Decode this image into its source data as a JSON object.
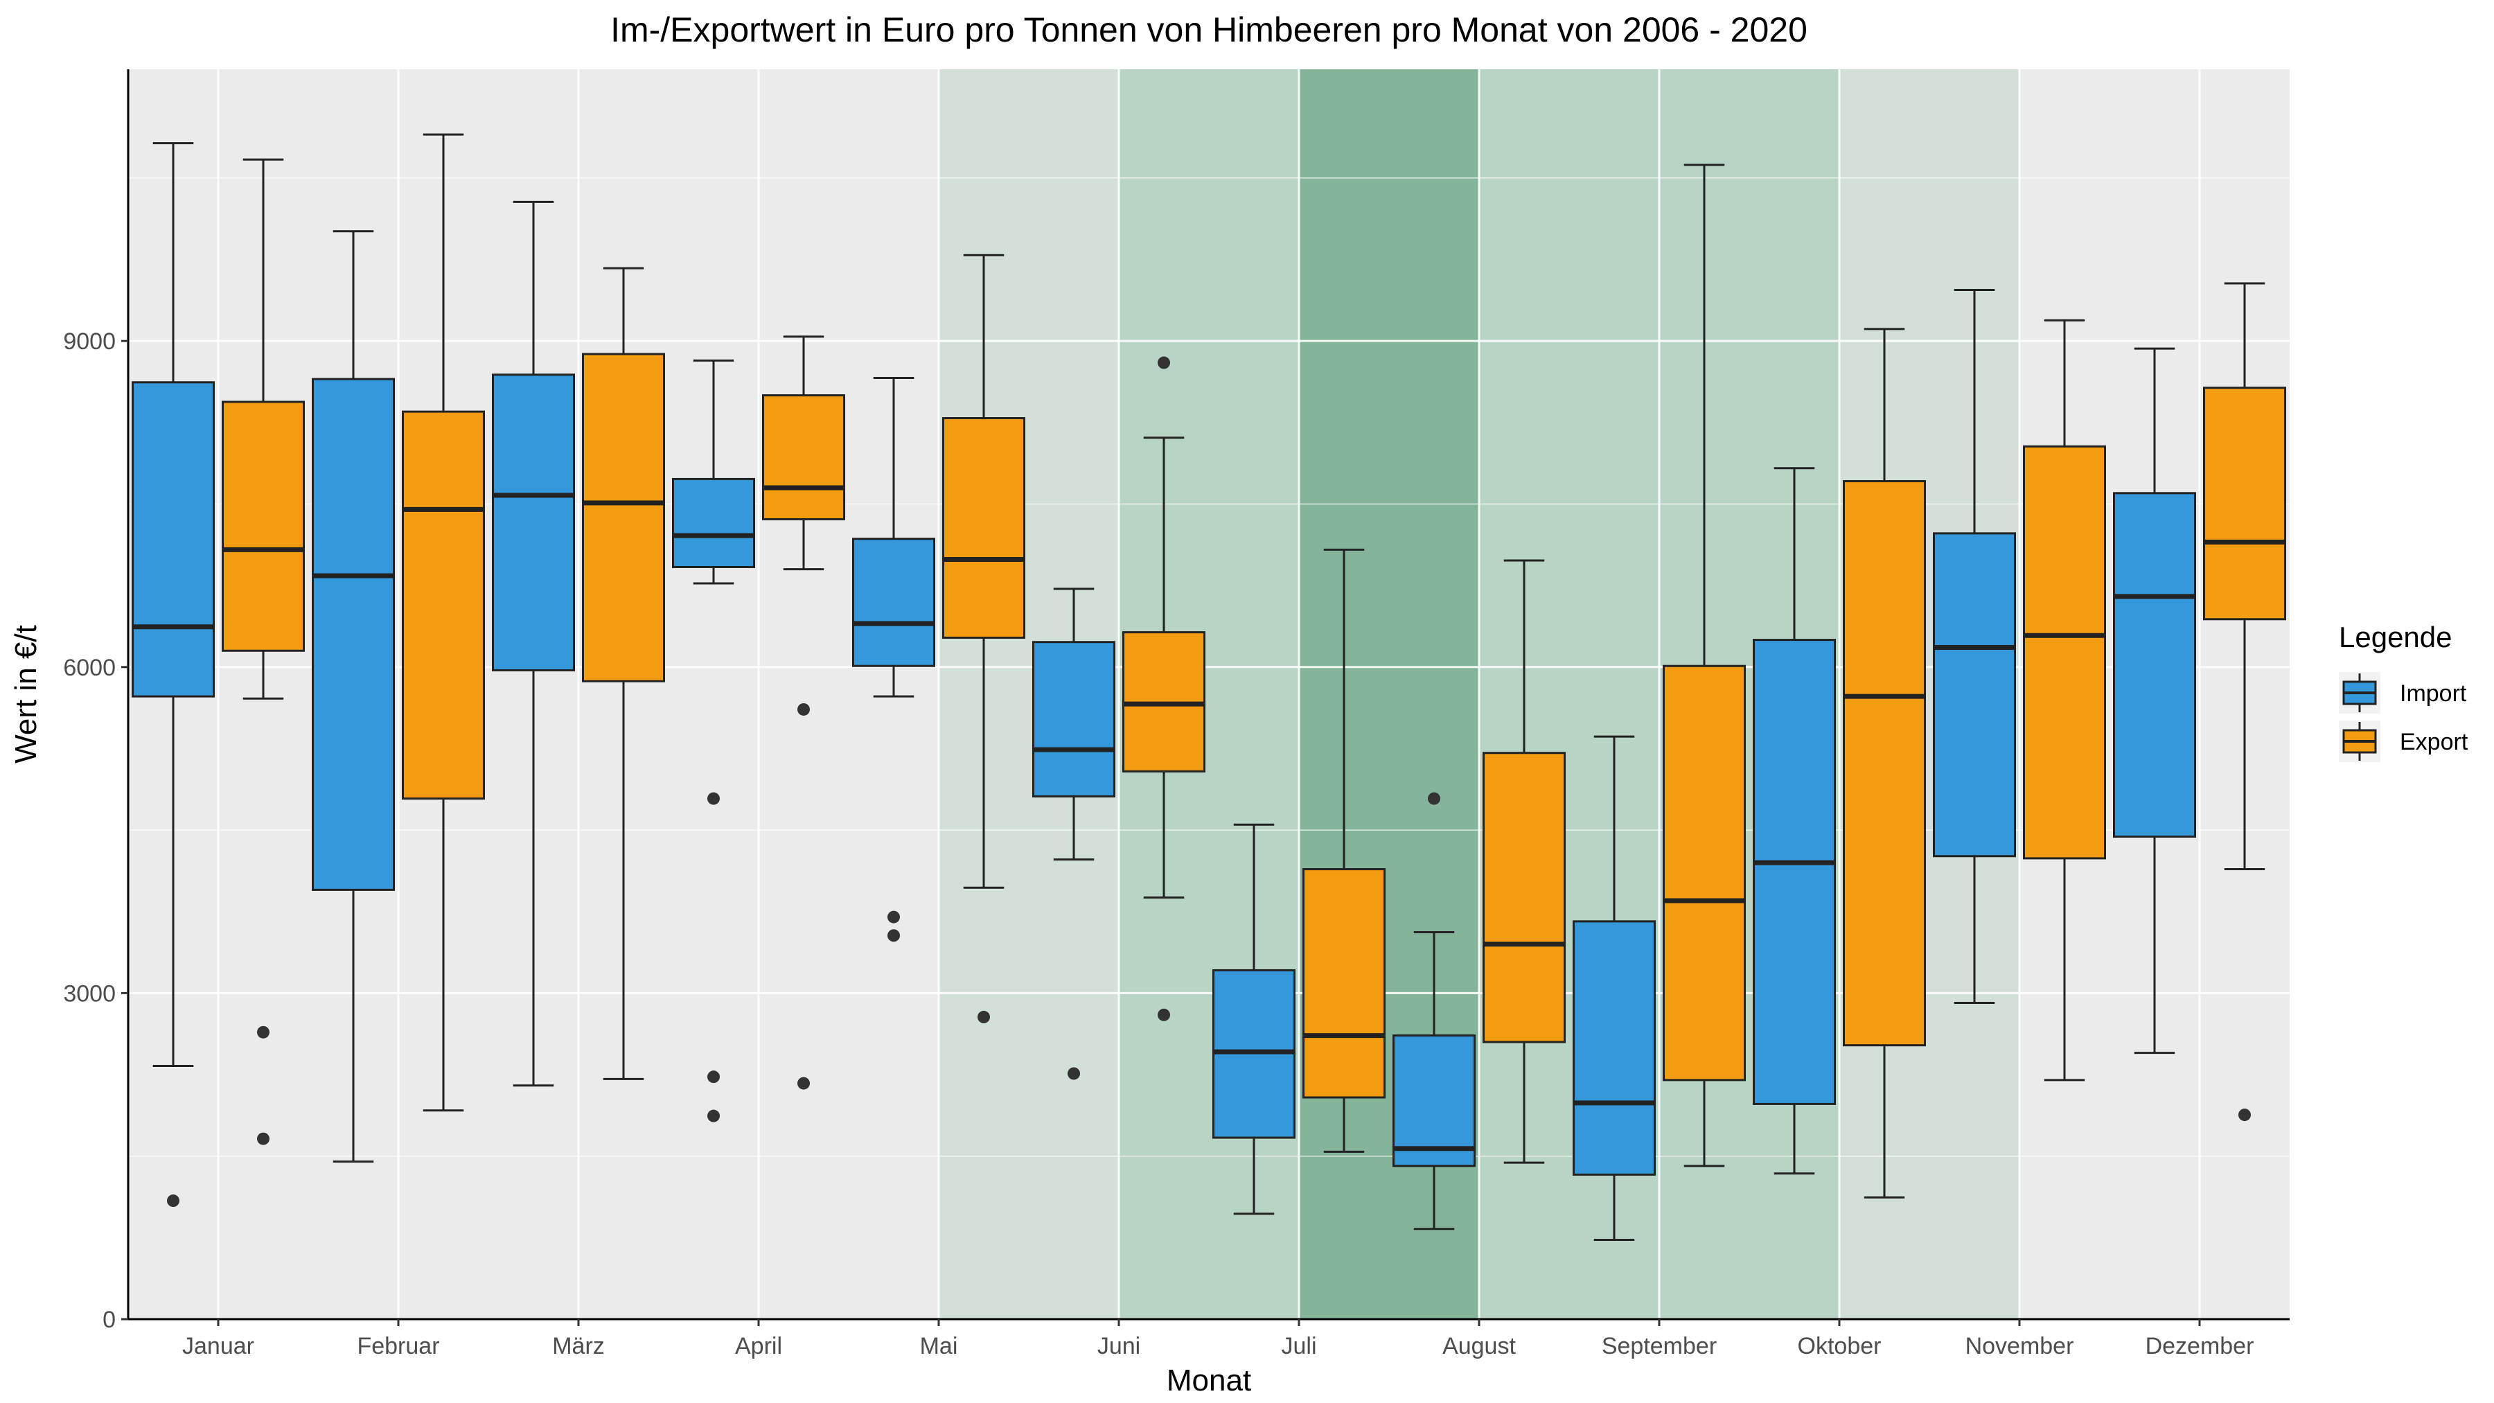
{
  "chart_data": {
    "type": "boxplot",
    "title": "Im-/Exportwert in Euro pro Tonnen von Himbeeren pro Monat von 2006 - 2020",
    "xlabel": "Monat",
    "ylabel": "Wert in €/t",
    "ylim": [
      0,
      11500
    ],
    "yticks": [
      0,
      3000,
      6000,
      9000
    ],
    "grid": true,
    "legend": {
      "title": "Legende",
      "position": "right"
    },
    "categories": [
      "Januar",
      "Februar",
      "März",
      "April",
      "Mai",
      "Juni",
      "Juli",
      "August",
      "September",
      "Oktober",
      "November",
      "Dezember"
    ],
    "highlight_bands": [
      {
        "from": "Mai",
        "to": "Juni",
        "color": "#d2e0d7"
      },
      {
        "from": "Juni",
        "to": "Juli",
        "color": "#b8d4c4"
      },
      {
        "from": "Juli",
        "to": "August",
        "color": "#84b59a"
      },
      {
        "from": "August",
        "to": "Oktober",
        "color": "#b8d4c4"
      },
      {
        "from": "Oktober",
        "to": "November",
        "color": "#d2e0d7"
      }
    ],
    "series": [
      {
        "name": "Import",
        "color": "#3498db",
        "boxes": [
          {
            "min": 2330,
            "q1": 5730,
            "median": 6370,
            "q3": 8620,
            "max": 10820,
            "outliers": [
              1090
            ]
          },
          {
            "min": 1450,
            "q1": 3950,
            "median": 6840,
            "q3": 8650,
            "max": 10010,
            "outliers": []
          },
          {
            "min": 2150,
            "q1": 5970,
            "median": 7580,
            "q3": 8690,
            "max": 10280,
            "outliers": []
          },
          {
            "min": 6770,
            "q1": 6920,
            "median": 7210,
            "q3": 7730,
            "max": 8820,
            "outliers": [
              4790,
              2230,
              1870
            ]
          },
          {
            "min": 5730,
            "q1": 6010,
            "median": 6400,
            "q3": 7180,
            "max": 8660,
            "outliers": [
              3700,
              3530
            ]
          },
          {
            "min": 4230,
            "q1": 4810,
            "median": 5240,
            "q3": 6230,
            "max": 6720,
            "outliers": [
              2260
            ]
          },
          {
            "min": 970,
            "q1": 1670,
            "median": 2460,
            "q3": 3210,
            "max": 4550,
            "outliers": []
          },
          {
            "min": 830,
            "q1": 1410,
            "median": 1570,
            "q3": 2610,
            "max": 3560,
            "outliers": [
              4790
            ]
          },
          {
            "min": 730,
            "q1": 1330,
            "median": 1990,
            "q3": 3660,
            "max": 5360,
            "outliers": []
          },
          {
            "min": 1340,
            "q1": 1980,
            "median": 4200,
            "q3": 6250,
            "max": 7830,
            "outliers": []
          },
          {
            "min": 2910,
            "q1": 4260,
            "median": 6180,
            "q3": 7230,
            "max": 9470,
            "outliers": []
          },
          {
            "min": 2450,
            "q1": 4440,
            "median": 6650,
            "q3": 7600,
            "max": 8930,
            "outliers": []
          }
        ]
      },
      {
        "name": "Export",
        "color": "#f39c12",
        "boxes": [
          {
            "min": 5710,
            "q1": 6150,
            "median": 7080,
            "q3": 8440,
            "max": 10670,
            "outliers": [
              2640,
              1660
            ]
          },
          {
            "min": 1920,
            "q1": 4790,
            "median": 7450,
            "q3": 8350,
            "max": 10900,
            "outliers": []
          },
          {
            "min": 2210,
            "q1": 5870,
            "median": 7510,
            "q3": 8880,
            "max": 9670,
            "outliers": []
          },
          {
            "min": 6900,
            "q1": 7360,
            "median": 7650,
            "q3": 8500,
            "max": 9040,
            "outliers": [
              5610,
              2170
            ]
          },
          {
            "min": 3970,
            "q1": 6270,
            "median": 6990,
            "q3": 8290,
            "max": 9790,
            "outliers": [
              2780
            ]
          },
          {
            "min": 3880,
            "q1": 5040,
            "median": 5660,
            "q3": 6320,
            "max": 8110,
            "outliers": [
              8800,
              2800
            ]
          },
          {
            "min": 1540,
            "q1": 2040,
            "median": 2610,
            "q3": 4140,
            "max": 7080,
            "outliers": []
          },
          {
            "min": 1440,
            "q1": 2550,
            "median": 3450,
            "q3": 5210,
            "max": 6980,
            "outliers": []
          },
          {
            "min": 1410,
            "q1": 2200,
            "median": 3850,
            "q3": 6010,
            "max": 10620,
            "outliers": []
          },
          {
            "min": 1120,
            "q1": 2520,
            "median": 5730,
            "q3": 7710,
            "max": 9110,
            "outliers": []
          },
          {
            "min": 2200,
            "q1": 4240,
            "median": 6290,
            "q3": 8030,
            "max": 9190,
            "outliers": []
          },
          {
            "min": 4140,
            "q1": 6440,
            "median": 7150,
            "q3": 8570,
            "max": 9530,
            "outliers": [
              1880
            ]
          }
        ]
      }
    ]
  }
}
